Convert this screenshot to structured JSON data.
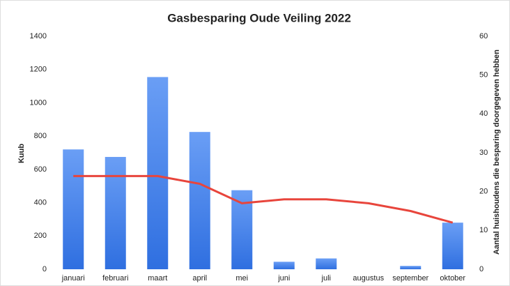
{
  "chart_data": {
    "type": "bar_line",
    "title": "Gasbesparing Oude Veiling 2022",
    "y_label": "Kuub",
    "y2_label": "Aantal huishoudens die besparing doorgegeven hebben",
    "categories": [
      "januari",
      "februari",
      "maart",
      "april",
      "mei",
      "juni",
      "juli",
      "augustus",
      "september",
      "oktober"
    ],
    "series": [
      {
        "type": "bar",
        "color": "#4a86e8",
        "values": [
          720,
          675,
          1155,
          825,
          475,
          45,
          65,
          0,
          20,
          280
        ]
      },
      {
        "type": "line",
        "color": "#e8453c",
        "axis": "y2",
        "values": [
          24,
          24,
          24,
          22,
          17,
          18,
          18,
          17,
          15,
          12
        ]
      }
    ],
    "ylim": [
      0,
      1400
    ],
    "yticks": [
      0,
      200,
      400,
      600,
      800,
      1000,
      1200,
      1400
    ],
    "y2lim": [
      0,
      60
    ],
    "y2ticks": [
      0,
      10,
      20,
      30,
      40,
      50,
      60
    ]
  }
}
